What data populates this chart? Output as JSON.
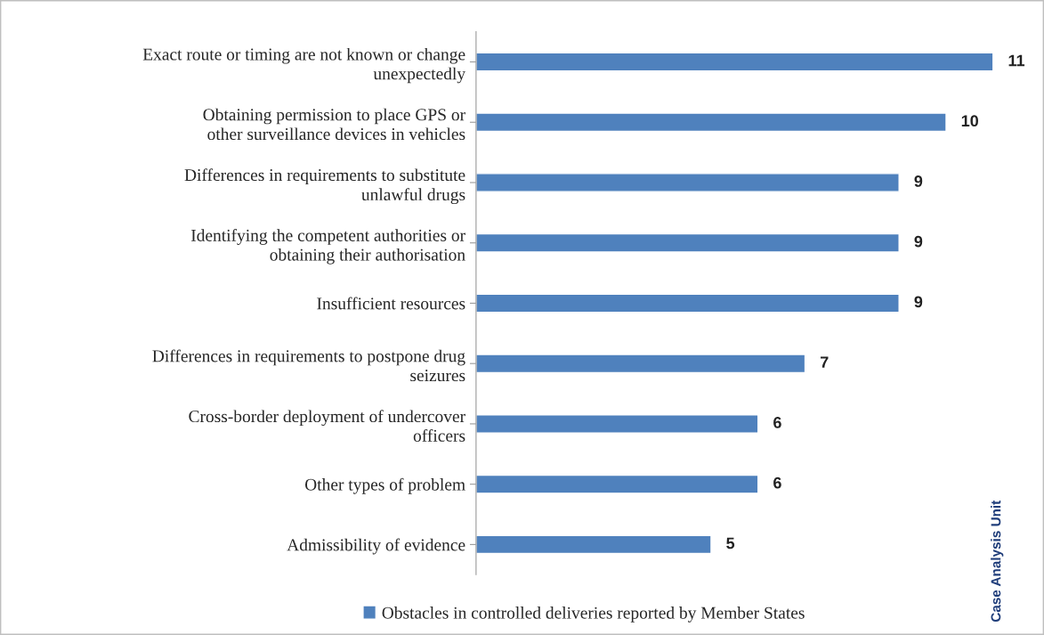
{
  "chart_data": {
    "type": "bar",
    "orientation": "horizontal",
    "categories": [
      "Exact route or timing are not known or change\nunexpectedly",
      "Obtaining permission to place GPS or\nother surveillance devices in vehicles",
      "Differences in requirements to substitute\nunlawful drugs",
      "Identifying the competent authorities or\nobtaining their authorisation",
      "Insufficient resources",
      "Differences in requirements to postpone drug\nseizures",
      "Cross-border deployment of undercover\nofficers",
      "Other types of problem",
      "Admissibility of evidence"
    ],
    "series": [
      {
        "name": "Obstacles in controlled deliveries reported by Member States",
        "color": "#4f81bd",
        "values": [
          11,
          10,
          9,
          9,
          9,
          7,
          6,
          6,
          5
        ]
      }
    ],
    "data_labels": true,
    "legend": "bottom",
    "grid": false,
    "annotations": [
      "Case Analysis Unit"
    ]
  }
}
